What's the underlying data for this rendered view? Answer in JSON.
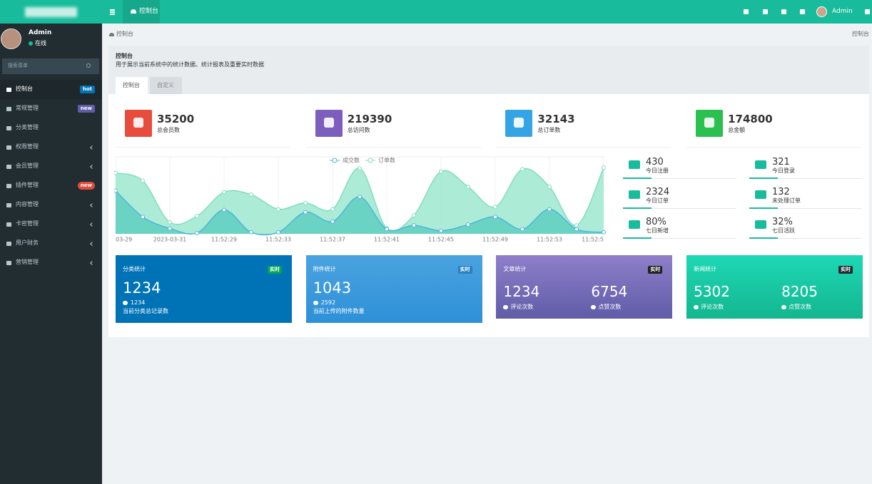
{
  "header": {
    "tab": "控制台",
    "user": "Admin"
  },
  "sidebar": {
    "user": "Admin",
    "status": "在线",
    "search": "搜索菜单",
    "menu": [
      {
        "label": "控制台",
        "badge": "hot",
        "badge_color": "#0073b7"
      },
      {
        "label": "常规管理",
        "badge": "new",
        "badge_color": "#605ca8"
      },
      {
        "label": "分类管理"
      },
      {
        "label": "权限管理",
        "expandable": true
      },
      {
        "label": "会员管理",
        "expandable": true
      },
      {
        "label": "插件管理",
        "badge": "new",
        "badge_color": "#dd4b39"
      },
      {
        "label": "内容管理",
        "expandable": true
      },
      {
        "label": "卡密管理",
        "expandable": true
      },
      {
        "label": "用户财务",
        "expandable": true
      },
      {
        "label": "营销管理",
        "expandable": true
      }
    ]
  },
  "breadcrumb": {
    "left": "控制台",
    "right": "控制台"
  },
  "panel": {
    "title": "控制台",
    "description": "用于展示当前系统中的统计数据、统计报表及重要实时数据",
    "tabs": [
      "控制台",
      "自定义"
    ]
  },
  "stats": [
    {
      "value": 35200,
      "label": "总会员数",
      "color": "#e74c3c"
    },
    {
      "value": 219390,
      "label": "总访问数",
      "color": "#7b5ebd"
    },
    {
      "value": 32143,
      "label": "总订单数",
      "color": "#35a4e6"
    },
    {
      "value": 174800,
      "label": "总金额",
      "color": "#2bc050"
    }
  ],
  "mini_stats": [
    {
      "value": "430",
      "label": "今日注册"
    },
    {
      "value": "321",
      "label": "今日登录"
    },
    {
      "value": "2324",
      "label": "今日订单"
    },
    {
      "value": "132",
      "label": "未处理订单"
    },
    {
      "value": "80%",
      "label": "七日新增"
    },
    {
      "value": "32%",
      "label": "七日活跃"
    }
  ],
  "cards": [
    {
      "title": "分类统计",
      "badge": "实时",
      "main": 1234,
      "sub": 1234,
      "note": "当前分类总记录数"
    },
    {
      "title": "附件统计",
      "badge": "实时",
      "main": 1043,
      "sub": 2592,
      "note": "当前上传的附件数量"
    },
    {
      "title": "文章统计",
      "badge": "实时",
      "items": [
        {
          "value": 1234,
          "label": "评论次数"
        },
        {
          "value": 6754,
          "label": "点赞次数"
        }
      ]
    },
    {
      "title": "新闻统计",
      "badge": "实时",
      "items": [
        {
          "value": 5302,
          "label": "评论次数"
        },
        {
          "value": 8205,
          "label": "点赞次数"
        }
      ]
    }
  ],
  "chart_data": {
    "type": "area",
    "categories": [
      "03-29",
      null,
      "2023-03-31",
      null,
      "11:52:29",
      null,
      "11:52:33",
      null,
      "11:52:37",
      null,
      "11:52:41",
      null,
      "11:52:45",
      null,
      "11:52:49",
      null,
      "11:52:53",
      null,
      "11:52:5"
    ],
    "series": [
      {
        "name": "成交数",
        "color": "#4fb4dc",
        "fill": "#5fcfbf",
        "values": [
          56,
          22,
          7,
          1,
          31,
          2,
          2,
          28,
          16,
          48,
          6,
          11,
          4,
          12,
          22,
          6,
          32,
          6,
          2
        ]
      },
      {
        "name": "订单数",
        "color": "#7fdcc0",
        "fill": "#9ee9d0",
        "values": [
          79,
          69,
          15,
          23,
          54,
          51,
          32,
          40,
          32,
          85,
          7,
          24,
          81,
          61,
          35,
          84,
          61,
          11,
          86
        ]
      }
    ],
    "ylim": [
      0,
      100
    ],
    "legend": "top"
  }
}
